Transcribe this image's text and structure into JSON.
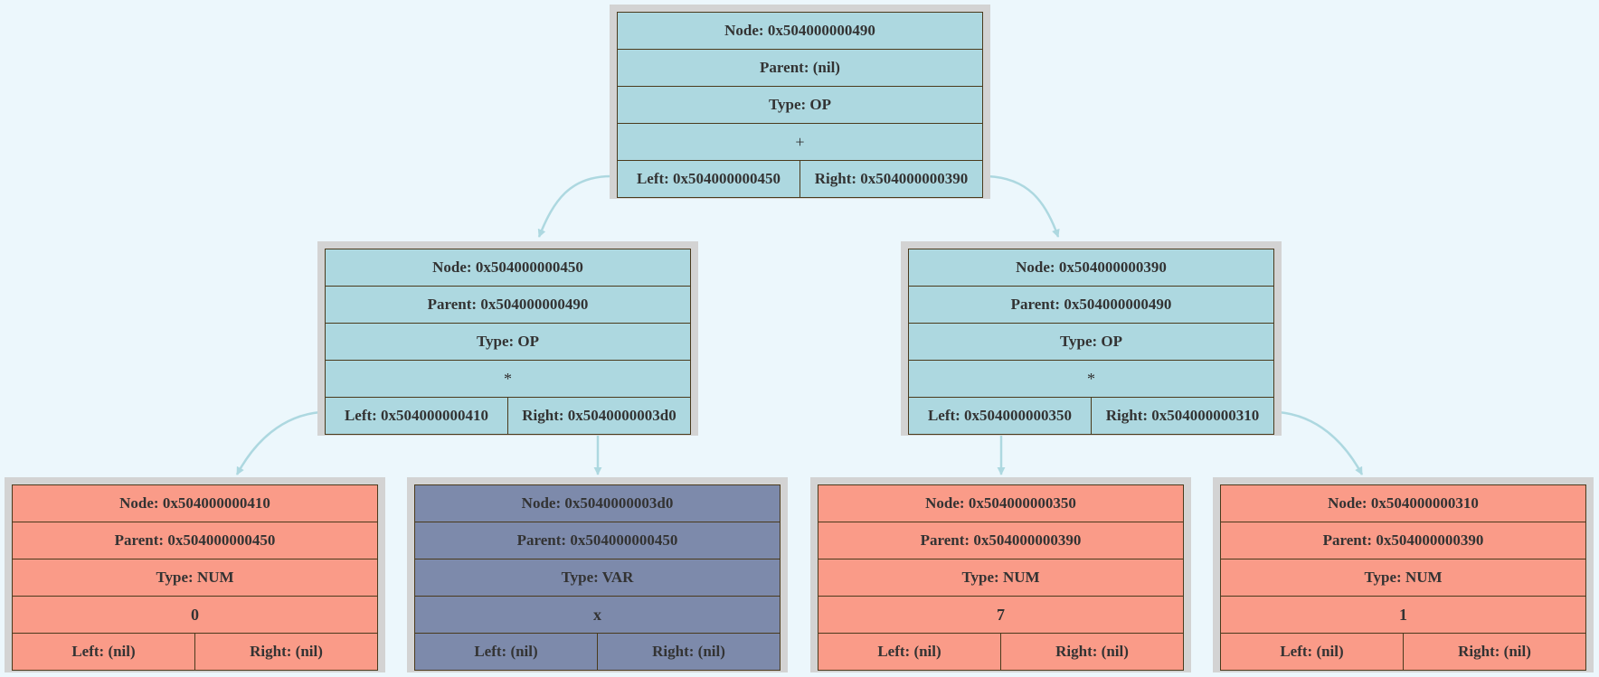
{
  "colors": {
    "background": "#ecf7fc",
    "frame": "#d3d3d3",
    "op_fill": "#add8e0",
    "num_fill": "#fa9b88",
    "var_fill": "#7d8aab",
    "edge": "#add8e0",
    "cell_border": "#4a3a1c"
  },
  "nodes": {
    "n490": {
      "node": "Node: 0x504000000490",
      "parent": "Parent: (nil)",
      "type": "Type: OP",
      "value": "+",
      "left": "Left: 0x504000000450",
      "right": "Right: 0x504000000390"
    },
    "n450": {
      "node": "Node: 0x504000000450",
      "parent": "Parent: 0x504000000490",
      "type": "Type: OP",
      "value": "*",
      "left": "Left: 0x504000000410",
      "right": "Right: 0x5040000003d0"
    },
    "n390": {
      "node": "Node: 0x504000000390",
      "parent": "Parent: 0x504000000490",
      "type": "Type: OP",
      "value": "*",
      "left": "Left: 0x504000000350",
      "right": "Right: 0x504000000310"
    },
    "n410": {
      "node": "Node: 0x504000000410",
      "parent": "Parent: 0x504000000450",
      "type": "Type: NUM",
      "value": "0",
      "left": "Left: (nil)",
      "right": "Right: (nil)"
    },
    "n3d0": {
      "node": "Node: 0x5040000003d0",
      "parent": "Parent: 0x504000000450",
      "type": "Type: VAR",
      "value": "x",
      "left": "Left: (nil)",
      "right": "Right: (nil)"
    },
    "n350": {
      "node": "Node: 0x504000000350",
      "parent": "Parent: 0x504000000390",
      "type": "Type: NUM",
      "value": "7",
      "left": "Left: (nil)",
      "right": "Right: (nil)"
    },
    "n310": {
      "node": "Node: 0x504000000310",
      "parent": "Parent: 0x504000000390",
      "type": "Type: NUM",
      "value": "1",
      "left": "Left: (nil)",
      "right": "Right: (nil)"
    }
  }
}
